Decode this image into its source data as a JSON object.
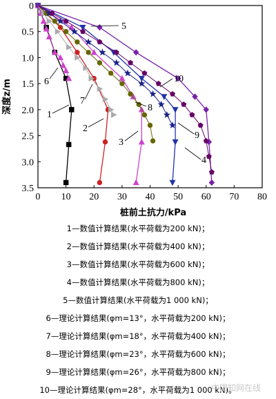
{
  "chart_data": {
    "type": "line",
    "xlabel": "桩前土抗力/kPa",
    "ylabel": "深度z/m",
    "xlim": [
      0,
      80
    ],
    "ylim": [
      0,
      3.5
    ],
    "y_inverted": true,
    "x_ticks": [
      "0",
      "10",
      "20",
      "30",
      "40",
      "50",
      "60",
      "70",
      "80"
    ],
    "y_ticks": [
      "0",
      "0.5",
      "1.0",
      "1.5",
      "2.0",
      "2.5",
      "3.0",
      "3.5"
    ],
    "grid": false,
    "series": [
      {
        "name": "1",
        "color": "#000000",
        "marker": "square",
        "x": [
          0,
          3,
          6,
          10,
          12,
          12,
          11,
          10
        ],
        "y": [
          0,
          0.42,
          0.9,
          1.4,
          2.0,
          2.0,
          2.67,
          3.4
        ]
      },
      {
        "name": "2",
        "color": "#cc2222",
        "marker": "circle",
        "x": [
          0,
          8,
          14,
          20,
          25,
          25,
          24,
          22
        ],
        "y": [
          0,
          0.42,
          0.9,
          1.4,
          2.0,
          2.0,
          2.62,
          3.4
        ]
      },
      {
        "name": "3",
        "color": "#cc44cc",
        "marker": "triangle-up",
        "x": [
          0,
          12,
          20,
          30,
          34,
          37,
          37,
          35
        ],
        "y": [
          0,
          0.42,
          0.9,
          1.4,
          1.75,
          2.0,
          2.62,
          3.4
        ]
      },
      {
        "name": "4",
        "color": "#2233aa",
        "marker": "triangle-down",
        "x": [
          0,
          16,
          27,
          37,
          45,
          49,
          49,
          48
        ],
        "y": [
          0,
          0.42,
          0.9,
          1.4,
          1.75,
          2.0,
          2.62,
          3.4
        ]
      },
      {
        "name": "5",
        "color": "#7722aa",
        "marker": "diamond",
        "x": [
          0,
          22,
          35,
          50,
          56,
          60,
          61,
          62
        ],
        "y": [
          0,
          0.42,
          0.9,
          1.4,
          1.75,
          2.0,
          2.62,
          3.4
        ]
      },
      {
        "name": "6",
        "color": "#cc44cc",
        "marker": "triangle-up",
        "x": [
          0,
          1,
          2,
          3,
          4,
          6,
          8,
          9,
          10,
          11
        ],
        "y": [
          0,
          0.15,
          0.3,
          0.45,
          0.6,
          0.9,
          1.0,
          1.15,
          1.25,
          1.4
        ]
      },
      {
        "name": "7",
        "color": "#aaaaaa",
        "marker": "triangle-right",
        "x": [
          0,
          2,
          4,
          7,
          11,
          14,
          17,
          19,
          22,
          24,
          26,
          27
        ],
        "y": [
          0,
          0.15,
          0.3,
          0.5,
          0.8,
          1.0,
          1.2,
          1.4,
          1.6,
          1.8,
          2.0,
          2.1
        ]
      },
      {
        "name": "8",
        "color": "#666600",
        "marker": "circle",
        "x": [
          0,
          3,
          6,
          10,
          14,
          18,
          22,
          26,
          30,
          33,
          36,
          38,
          40,
          41
        ],
        "y": [
          0,
          0.15,
          0.3,
          0.5,
          0.7,
          0.9,
          1.1,
          1.3,
          1.5,
          1.7,
          1.9,
          2.1,
          2.3,
          2.6
        ]
      },
      {
        "name": "9",
        "color": "#1a2288",
        "marker": "star",
        "x": [
          0,
          4,
          8,
          13,
          18,
          23,
          28,
          32,
          37,
          41,
          44,
          46,
          48
        ],
        "y": [
          0,
          0.15,
          0.3,
          0.5,
          0.7,
          0.9,
          1.1,
          1.3,
          1.5,
          1.7,
          1.9,
          2.1,
          2.3
        ]
      },
      {
        "name": "10",
        "color": "#660066",
        "marker": "pentagon",
        "x": [
          0,
          5,
          10,
          16,
          22,
          28,
          33,
          38,
          43,
          48,
          52,
          55,
          58,
          60,
          61,
          62
        ],
        "y": [
          0,
          0.15,
          0.3,
          0.5,
          0.7,
          0.9,
          1.1,
          1.3,
          1.5,
          1.7,
          1.9,
          2.1,
          2.3,
          2.6,
          2.9,
          3.2
        ]
      }
    ],
    "series_labels": [
      "1",
      "2",
      "3",
      "4",
      "5",
      "6",
      "7",
      "8",
      "9",
      "10"
    ]
  },
  "legend_lines": [
    "1—数值计算结果(水平荷载为200 kN)；",
    "2—数值计算结果(水平荷载为400 kN)；",
    "3—数值计算结果(水平荷载为600 kN)；",
    "4—数值计算结果(水平荷载为800 kN)；",
    "5—数值计算结果(水平荷载为1 000 kN)；",
    "6—理论计算结果(φm=13°，水平荷载为200 kN)；",
    "7—理论计算结果(φm=18°，水平荷载为400 kN)；",
    "8—理论计算结果(φm=23°，水平荷载为600 kN)；",
    "9—理论计算结果(φm=26°，水平荷载为800 kN)；",
    "10—理论计算结果(φm=28°，水平荷载为1 000 kN)。"
  ],
  "watermark": "中国知网在线"
}
